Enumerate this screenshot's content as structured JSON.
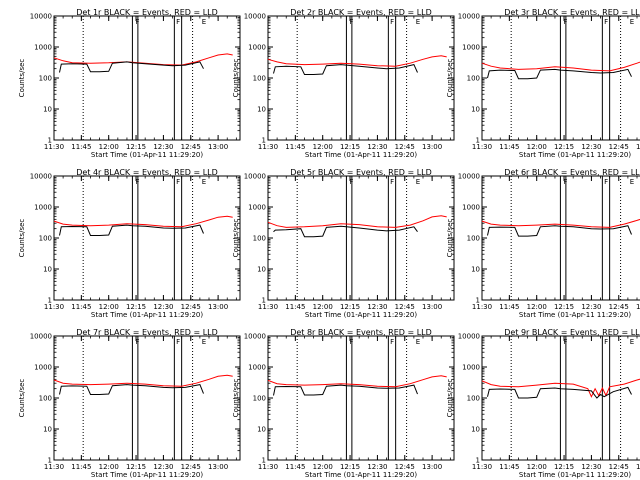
{
  "chart_data": {
    "type": "line",
    "y_scale": "log",
    "ylim": [
      1,
      10000
    ],
    "y_ticks": [
      "1",
      "10",
      "100",
      "1000",
      "10000"
    ],
    "x_range": [
      "11:30",
      "13:12"
    ],
    "x_ticks": [
      "11:30",
      "11:45",
      "12:00",
      "12:15",
      "12:30",
      "12:45",
      "13:00"
    ],
    "ylabel": "Counts/sec",
    "xlabel": "Start Time (01-Apr-11 11:29:20)",
    "series_colors": {
      "events": "#000000",
      "lld": "#ff0000"
    },
    "vertical_markers": [
      {
        "time": "11:46",
        "style": "dotted"
      },
      {
        "time": "12:13",
        "style": "solid"
      },
      {
        "time": "12:16",
        "style": "solid"
      },
      {
        "time": "12:36",
        "style": "solid"
      },
      {
        "time": "12:40",
        "style": "solid"
      },
      {
        "time": "12:46",
        "style": "dotted"
      }
    ],
    "marker_labels": [
      "F",
      "F",
      "E"
    ],
    "panels": [
      {
        "title": "Det 1r BLACK = Events, RED = LLD",
        "events": [
          [
            "11:33",
            150
          ],
          [
            "11:34",
            280
          ],
          [
            "11:40",
            290
          ],
          [
            "11:48",
            280
          ],
          [
            "11:50",
            160
          ],
          [
            "11:55",
            160
          ],
          [
            "12:00",
            165
          ],
          [
            "12:02",
            300
          ],
          [
            "12:10",
            330
          ],
          [
            "12:13",
            310
          ],
          [
            "12:20",
            290
          ],
          [
            "12:30",
            260
          ],
          [
            "12:35",
            250
          ],
          [
            "12:42",
            260
          ],
          [
            "12:50",
            330
          ],
          [
            "12:52",
            200
          ]
        ],
        "lld": [
          [
            "11:30",
            450
          ],
          [
            "11:35",
            360
          ],
          [
            "11:40",
            310
          ],
          [
            "11:50",
            300
          ],
          [
            "12:00",
            310
          ],
          [
            "12:10",
            330
          ],
          [
            "12:20",
            300
          ],
          [
            "12:30",
            270
          ],
          [
            "12:40",
            260
          ],
          [
            "12:48",
            330
          ],
          [
            "12:55",
            450
          ],
          [
            "13:00",
            550
          ],
          [
            "13:05",
            600
          ],
          [
            "13:08",
            550
          ]
        ]
      },
      {
        "title": "Det 2r BLACK = Events, RED = LLD",
        "events": [
          [
            "11:33",
            140
          ],
          [
            "11:34",
            230
          ],
          [
            "11:40",
            240
          ],
          [
            "11:48",
            230
          ],
          [
            "11:50",
            130
          ],
          [
            "11:55",
            130
          ],
          [
            "12:00",
            135
          ],
          [
            "12:02",
            250
          ],
          [
            "12:10",
            270
          ],
          [
            "12:13",
            260
          ],
          [
            "12:20",
            240
          ],
          [
            "12:30",
            210
          ],
          [
            "12:35",
            200
          ],
          [
            "12:42",
            210
          ],
          [
            "12:50",
            270
          ],
          [
            "12:52",
            150
          ]
        ],
        "lld": [
          [
            "11:30",
            400
          ],
          [
            "11:35",
            330
          ],
          [
            "11:40",
            290
          ],
          [
            "11:50",
            270
          ],
          [
            "12:00",
            280
          ],
          [
            "12:10",
            300
          ],
          [
            "12:20",
            280
          ],
          [
            "12:30",
            250
          ],
          [
            "12:40",
            240
          ],
          [
            "12:48",
            300
          ],
          [
            "12:55",
            400
          ],
          [
            "13:00",
            480
          ],
          [
            "13:05",
            520
          ],
          [
            "13:08",
            480
          ]
        ]
      },
      {
        "title": "Det 3r BLACK = Events, RED = LLD",
        "events": [
          [
            "11:33",
            100
          ],
          [
            "11:34",
            170
          ],
          [
            "11:40",
            180
          ],
          [
            "11:48",
            175
          ],
          [
            "11:50",
            95
          ],
          [
            "11:55",
            95
          ],
          [
            "12:00",
            100
          ],
          [
            "12:02",
            180
          ],
          [
            "12:10",
            190
          ],
          [
            "12:13",
            180
          ],
          [
            "12:20",
            170
          ],
          [
            "12:30",
            150
          ],
          [
            "12:35",
            145
          ],
          [
            "12:42",
            150
          ],
          [
            "12:50",
            190
          ],
          [
            "12:52",
            110
          ]
        ],
        "lld": [
          [
            "11:30",
            300
          ],
          [
            "11:35",
            240
          ],
          [
            "11:40",
            210
          ],
          [
            "11:50",
            190
          ],
          [
            "12:00",
            200
          ],
          [
            "12:10",
            230
          ],
          [
            "12:20",
            210
          ],
          [
            "12:30",
            180
          ],
          [
            "12:40",
            170
          ],
          [
            "12:48",
            220
          ],
          [
            "12:55",
            300
          ],
          [
            "13:00",
            380
          ],
          [
            "13:05",
            420
          ],
          [
            "13:08",
            380
          ]
        ]
      },
      {
        "title": "Det 4r BLACK = Events, RED = LLD",
        "events": [
          [
            "11:33",
            120
          ],
          [
            "11:34",
            230
          ],
          [
            "11:40",
            235
          ],
          [
            "11:48",
            230
          ],
          [
            "11:50",
            120
          ],
          [
            "11:55",
            120
          ],
          [
            "12:00",
            125
          ],
          [
            "12:02",
            240
          ],
          [
            "12:10",
            260
          ],
          [
            "12:13",
            250
          ],
          [
            "12:20",
            240
          ],
          [
            "12:30",
            210
          ],
          [
            "12:35",
            205
          ],
          [
            "12:42",
            210
          ],
          [
            "12:50",
            260
          ],
          [
            "12:52",
            140
          ]
        ],
        "lld": [
          [
            "11:30",
            350
          ],
          [
            "11:35",
            280
          ],
          [
            "11:40",
            260
          ],
          [
            "11:50",
            250
          ],
          [
            "12:00",
            260
          ],
          [
            "12:10",
            290
          ],
          [
            "12:20",
            270
          ],
          [
            "12:30",
            240
          ],
          [
            "12:40",
            230
          ],
          [
            "12:48",
            290
          ],
          [
            "12:55",
            380
          ],
          [
            "13:00",
            470
          ],
          [
            "13:05",
            500
          ],
          [
            "13:08",
            470
          ]
        ]
      },
      {
        "title": "Det 5r BLACK = Events, RED = LLD",
        "events": [
          [
            "11:33",
            160
          ],
          [
            "11:34",
            180
          ],
          [
            "11:40",
            185
          ],
          [
            "11:48",
            200
          ],
          [
            "11:50",
            110
          ],
          [
            "11:55",
            110
          ],
          [
            "12:00",
            115
          ],
          [
            "12:02",
            220
          ],
          [
            "12:10",
            240
          ],
          [
            "12:13",
            230
          ],
          [
            "12:20",
            210
          ],
          [
            "12:30",
            180
          ],
          [
            "12:35",
            170
          ],
          [
            "12:42",
            180
          ],
          [
            "12:50",
            230
          ],
          [
            "12:52",
            160
          ]
        ],
        "lld": [
          [
            "11:30",
            320
          ],
          [
            "11:35",
            250
          ],
          [
            "11:40",
            220
          ],
          [
            "11:50",
            230
          ],
          [
            "12:00",
            250
          ],
          [
            "12:10",
            290
          ],
          [
            "12:20",
            270
          ],
          [
            "12:30",
            230
          ],
          [
            "12:40",
            220
          ],
          [
            "12:48",
            260
          ],
          [
            "12:55",
            360
          ],
          [
            "13:00",
            480
          ],
          [
            "13:05",
            520
          ],
          [
            "13:08",
            480
          ]
        ]
      },
      {
        "title": "Det 6r BLACK = Events, RED = LLD",
        "events": [
          [
            "11:33",
            120
          ],
          [
            "11:34",
            220
          ],
          [
            "11:40",
            225
          ],
          [
            "11:48",
            220
          ],
          [
            "11:50",
            115
          ],
          [
            "11:55",
            115
          ],
          [
            "12:00",
            120
          ],
          [
            "12:02",
            230
          ],
          [
            "12:10",
            250
          ],
          [
            "12:13",
            240
          ],
          [
            "12:20",
            230
          ],
          [
            "12:30",
            200
          ],
          [
            "12:35",
            195
          ],
          [
            "12:42",
            200
          ],
          [
            "12:50",
            250
          ],
          [
            "12:52",
            130
          ]
        ],
        "lld": [
          [
            "11:30",
            350
          ],
          [
            "11:35",
            280
          ],
          [
            "11:40",
            260
          ],
          [
            "11:50",
            250
          ],
          [
            "12:00",
            260
          ],
          [
            "12:10",
            280
          ],
          [
            "12:20",
            260
          ],
          [
            "12:30",
            230
          ],
          [
            "12:40",
            220
          ],
          [
            "12:48",
            280
          ],
          [
            "12:55",
            370
          ],
          [
            "13:00",
            460
          ],
          [
            "13:05",
            490
          ],
          [
            "13:08",
            460
          ]
        ]
      },
      {
        "title": "Det 7r BLACK = Events, RED = LLD",
        "events": [
          [
            "11:33",
            130
          ],
          [
            "11:34",
            240
          ],
          [
            "11:40",
            245
          ],
          [
            "11:48",
            240
          ],
          [
            "11:50",
            130
          ],
          [
            "11:55",
            130
          ],
          [
            "12:00",
            135
          ],
          [
            "12:02",
            250
          ],
          [
            "12:10",
            270
          ],
          [
            "12:13",
            260
          ],
          [
            "12:20",
            250
          ],
          [
            "12:30",
            220
          ],
          [
            "12:35",
            215
          ],
          [
            "12:42",
            220
          ],
          [
            "12:50",
            270
          ],
          [
            "12:52",
            140
          ]
        ],
        "lld": [
          [
            "11:30",
            380
          ],
          [
            "11:35",
            300
          ],
          [
            "11:40",
            280
          ],
          [
            "11:50",
            270
          ],
          [
            "12:00",
            280
          ],
          [
            "12:10",
            300
          ],
          [
            "12:20",
            280
          ],
          [
            "12:30",
            250
          ],
          [
            "12:40",
            240
          ],
          [
            "12:48",
            300
          ],
          [
            "12:55",
            400
          ],
          [
            "13:00",
            500
          ],
          [
            "13:05",
            540
          ],
          [
            "13:08",
            500
          ]
        ]
      },
      {
        "title": "Det 8r BLACK = Events, RED = LLD",
        "events": [
          [
            "11:33",
            120
          ],
          [
            "11:34",
            230
          ],
          [
            "11:40",
            235
          ],
          [
            "11:48",
            230
          ],
          [
            "11:50",
            125
          ],
          [
            "11:55",
            125
          ],
          [
            "12:00",
            130
          ],
          [
            "12:02",
            240
          ],
          [
            "12:10",
            260
          ],
          [
            "12:13",
            250
          ],
          [
            "12:20",
            240
          ],
          [
            "12:30",
            210
          ],
          [
            "12:35",
            205
          ],
          [
            "12:42",
            210
          ],
          [
            "12:50",
            260
          ],
          [
            "12:52",
            135
          ]
        ],
        "lld": [
          [
            "11:30",
            370
          ],
          [
            "11:35",
            290
          ],
          [
            "11:40",
            270
          ],
          [
            "11:50",
            260
          ],
          [
            "12:00",
            270
          ],
          [
            "12:10",
            290
          ],
          [
            "12:20",
            270
          ],
          [
            "12:30",
            240
          ],
          [
            "12:40",
            230
          ],
          [
            "12:48",
            290
          ],
          [
            "12:55",
            390
          ],
          [
            "13:00",
            480
          ],
          [
            "13:05",
            520
          ],
          [
            "13:08",
            480
          ]
        ]
      },
      {
        "title": "Det 9r BLACK = Events, RED = LLD",
        "events": [
          [
            "11:33",
            110
          ],
          [
            "11:34",
            190
          ],
          [
            "11:40",
            195
          ],
          [
            "11:48",
            190
          ],
          [
            "11:50",
            100
          ],
          [
            "11:55",
            100
          ],
          [
            "12:00",
            105
          ],
          [
            "12:02",
            200
          ],
          [
            "12:10",
            210
          ],
          [
            "12:13",
            200
          ],
          [
            "12:20",
            190
          ],
          [
            "12:30",
            170
          ],
          [
            "12:33",
            100
          ],
          [
            "12:35",
            130
          ],
          [
            "12:37",
            110
          ],
          [
            "12:42",
            160
          ],
          [
            "12:50",
            220
          ],
          [
            "12:52",
            130
          ]
        ],
        "lld": [
          [
            "11:30",
            360
          ],
          [
            "11:35",
            270
          ],
          [
            "11:40",
            240
          ],
          [
            "11:50",
            230
          ],
          [
            "12:00",
            260
          ],
          [
            "12:10",
            300
          ],
          [
            "12:20",
            280
          ],
          [
            "12:28",
            200
          ],
          [
            "12:30",
            110
          ],
          [
            "12:32",
            200
          ],
          [
            "12:34",
            120
          ],
          [
            "12:36",
            210
          ],
          [
            "12:38",
            120
          ],
          [
            "12:40",
            230
          ],
          [
            "12:48",
            280
          ],
          [
            "12:55",
            380
          ],
          [
            "13:00",
            460
          ],
          [
            "13:05",
            480
          ],
          [
            "13:08",
            450
          ]
        ]
      }
    ]
  }
}
